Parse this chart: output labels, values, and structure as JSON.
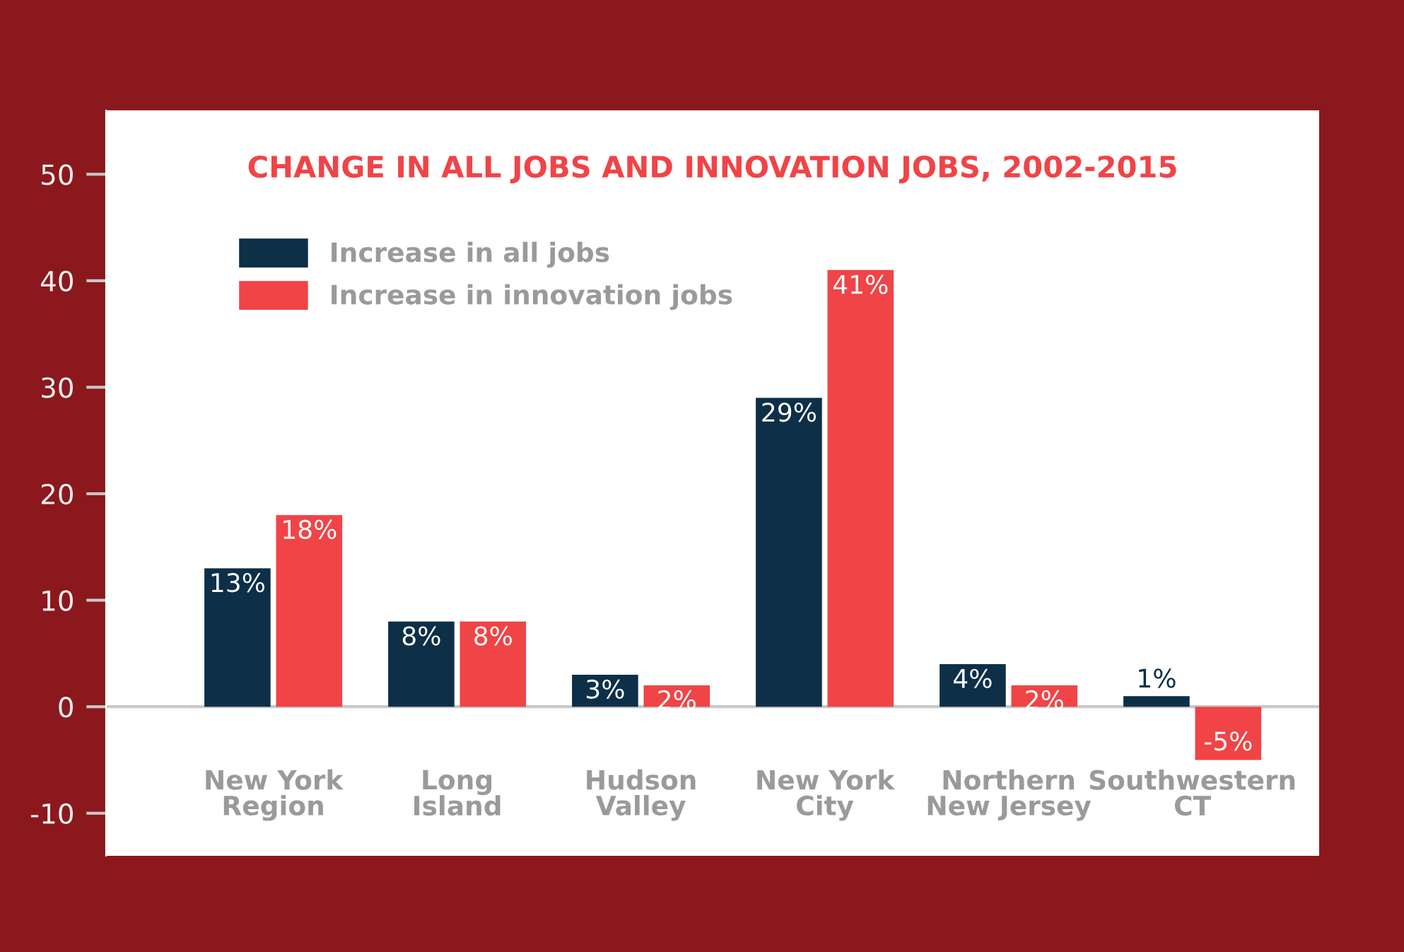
{
  "chart_data": {
    "type": "bar",
    "title": "CHANGE IN ALL JOBS AND INNOVATION JOBS, 2002-2015",
    "categories": [
      "New York\nRegion",
      "Long\nIsland",
      "Hudson\nValley",
      "New York\nCity",
      "Northern\nNew Jersey",
      "Southwestern\nCT"
    ],
    "series": [
      {
        "name": "Increase in all jobs",
        "color": "#0d2f48",
        "values": [
          13,
          8,
          3,
          29,
          4,
          1
        ],
        "value_labels": [
          "13%",
          "8%",
          "3%",
          "29%",
          "4%",
          "1%"
        ]
      },
      {
        "name": "Increase in innovation jobs",
        "color": "#f04447",
        "values": [
          18,
          8,
          2,
          41,
          2,
          -5
        ],
        "value_labels": [
          "18%",
          "8%",
          "2%",
          "41%",
          "2%",
          "-5%"
        ]
      }
    ],
    "ylim": [
      -14,
      56
    ],
    "yticks": [
      -10,
      0,
      10,
      20,
      30,
      40,
      50
    ],
    "ref_lines": [
      {
        "axis": "y",
        "value": 0,
        "color": "#c8c8c8"
      }
    ],
    "legend": "top left",
    "grid": false
  }
}
